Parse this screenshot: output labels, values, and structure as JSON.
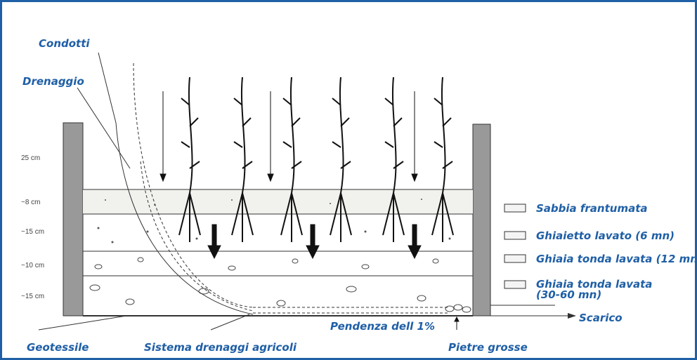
{
  "labels": {
    "condotti": "Condotti",
    "drenaggio": "Drenaggio",
    "geotessile": "Geotessile",
    "sistema": "Sistema drenaggi agricoli",
    "pietre": "Pietre grosse",
    "pendenza": "Pendenza dell 1%",
    "scarico": "Scarico"
  },
  "depths": [
    "25 cm",
    "~8 cm",
    "~15 cm",
    "~10 cm",
    "~15 cm"
  ],
  "legend": [
    [
      "Sabbia frantumata"
    ],
    [
      "Ghiaietto lavato (6 mn)"
    ],
    [
      "Ghiaia tonda lavata (12 mn"
    ],
    [
      "Ghiaia tonda lavata",
      "(30-60 mn)"
    ]
  ]
}
